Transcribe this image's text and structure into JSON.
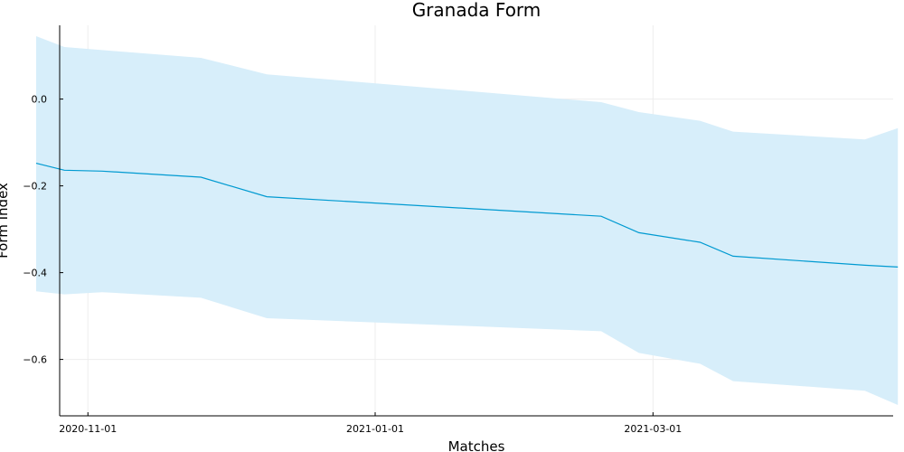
{
  "chart_data": {
    "type": "line",
    "title": "Granada Form",
    "xlabel": "Matches",
    "ylabel": "Form Index",
    "x_ticks": [
      "2020-11-01",
      "2021-01-01",
      "2021-03-01"
    ],
    "y_ticks": [
      "0.0",
      "−0.2",
      "−0.4",
      "−0.6"
    ],
    "xlim": [
      "2020-10-26",
      "2021-04-21"
    ],
    "ylim": [
      -0.73,
      0.17
    ],
    "grid": true,
    "legend": "none",
    "colors": {
      "line": "#009AD1",
      "band": "#D7EEFA",
      "grid": "#EDEDED",
      "axis": "#000000"
    },
    "series": [
      {
        "x": [
          "2020-10-21",
          "2020-10-27",
          "2020-11-04",
          "2020-11-25",
          "2020-12-09",
          "2021-02-18",
          "2021-02-26",
          "2021-03-11",
          "2021-03-18",
          "2021-04-15",
          "2021-04-22"
        ],
        "y": [
          -0.148,
          -0.164,
          -0.166,
          -0.18,
          -0.225,
          -0.27,
          -0.308,
          -0.33,
          -0.362,
          -0.383,
          -0.387
        ],
        "lower": [
          -0.443,
          -0.45,
          -0.445,
          -0.458,
          -0.505,
          -0.535,
          -0.585,
          -0.61,
          -0.65,
          -0.672,
          -0.705
        ],
        "upper": [
          0.145,
          0.12,
          0.113,
          0.095,
          0.057,
          -0.007,
          -0.03,
          -0.05,
          -0.075,
          -0.093,
          -0.067
        ]
      }
    ]
  }
}
